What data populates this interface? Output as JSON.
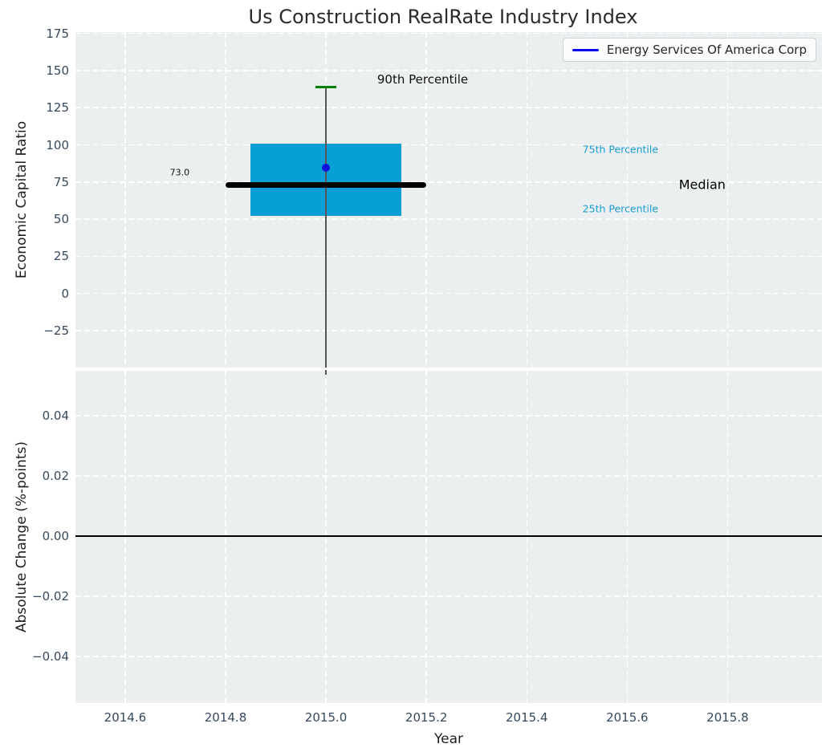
{
  "figure": {
    "title": "Us Construction RealRate Industry Index",
    "background": "#ffffff",
    "plot_background": "#ebeff0",
    "grid_color": "#ffffff"
  },
  "legend": {
    "label": "Energy Services Of America Corp",
    "line_color": "#0101f0",
    "position": "top-right"
  },
  "chart_data": [
    {
      "type": "box",
      "title": "Us Construction RealRate Industry Index",
      "ylabel": "Economic Capital Ratio",
      "xlim": [
        2014.501,
        2015.988
      ],
      "ylim": [
        -49.9,
        175.9
      ],
      "grid": {
        "style": "dashed",
        "color": "#ffffff"
      },
      "xticks": [
        2014.6,
        2014.8,
        2015.0,
        2015.2,
        2015.4,
        2015.6,
        2015.8
      ],
      "yticks": [
        175,
        150,
        125,
        100,
        75,
        50,
        25,
        0,
        -25
      ],
      "ytick_labels": [
        "175",
        "150",
        "125",
        "100",
        "75",
        "50",
        "25",
        "0",
        "−25"
      ],
      "box": {
        "x": 2015.0,
        "q1": 52.4,
        "median": 73.0,
        "q3": 100.8,
        "p90": 139.0,
        "whisker_low": "clipped below axis",
        "box_halfwidth": 0.15,
        "median_halfwidth": 0.2,
        "cap_halfwidth": 0.021,
        "fill_color": "#089ed6",
        "median_color": "#000000",
        "cap_color": "#008000",
        "whisker_color": "#555555"
      },
      "company_point": {
        "label": "Energy Services Of America Corp",
        "x": 2015.0,
        "y": 84.8,
        "color": "#1111dd"
      },
      "annotations": [
        {
          "id": "p90-label",
          "text": "90th Percentile",
          "x": 2015.102,
          "y": 144.0,
          "color": "#111111",
          "ha": "left"
        },
        {
          "id": "median-value",
          "text": "73.0",
          "x": 2014.689,
          "y": 81.4,
          "color": "#111111",
          "ha": "left"
        },
        {
          "id": "p75-label",
          "text": "75th Percentile",
          "x": 2015.511,
          "y": 97.0,
          "color": "#1b9cd3",
          "ha": "left"
        },
        {
          "id": "median-label",
          "text": "Median",
          "x": 2015.703,
          "y": 73.5,
          "color": "#000000",
          "ha": "left"
        },
        {
          "id": "p25-label",
          "text": "25th Percentile",
          "x": 2015.511,
          "y": 57.3,
          "color": "#1b9cd3",
          "ha": "left"
        }
      ]
    },
    {
      "type": "line",
      "ylabel": "Absolute Change (%-points)",
      "xlabel": "Year",
      "xlim": [
        2014.501,
        2015.988
      ],
      "ylim": [
        -0.0555,
        0.0549
      ],
      "grid": {
        "style": "dashed",
        "color": "#ffffff"
      },
      "xticks": [
        2014.6,
        2014.8,
        2015.0,
        2015.2,
        2015.4,
        2015.6,
        2015.8
      ],
      "xtick_labels": [
        "2014.6",
        "2014.8",
        "2015.0",
        "2015.2",
        "2015.4",
        "2015.6",
        "2015.8"
      ],
      "yticks": [
        0.04,
        0.02,
        0,
        -0.02,
        -0.04
      ],
      "ytick_labels": [
        "0.04",
        "0.02",
        "0.00",
        "−0.02",
        "−0.04"
      ],
      "zero_line": {
        "y": 0.0,
        "color": "#000000"
      },
      "series": [
        {
          "name": "Energy Services Of America Corp",
          "color": "#0101f0",
          "x": [],
          "y": []
        }
      ]
    }
  ]
}
